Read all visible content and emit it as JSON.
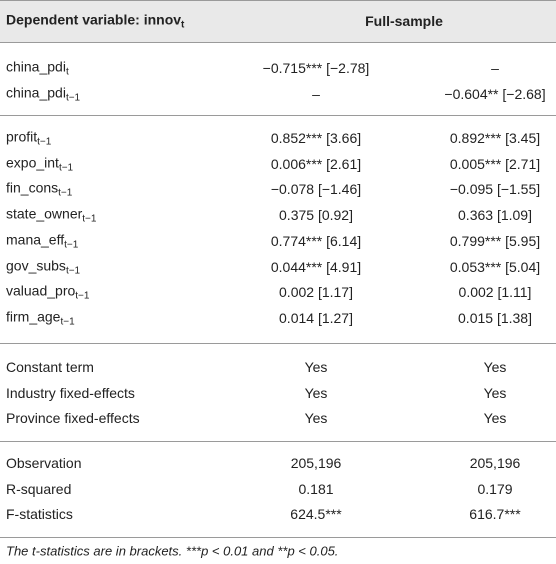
{
  "header": {
    "label": "Dependent variable: innov",
    "label_sub": "t",
    "column": "Full-sample"
  },
  "groups": [
    {
      "rows": [
        {
          "label": "china_pdi",
          "sub": "t",
          "cells": [
            "−0.715*** [−2.78]",
            "–"
          ]
        },
        {
          "label": "china_pdi",
          "sub": "t−1",
          "cells": [
            "–",
            "−0.604** [−2.68]"
          ]
        }
      ]
    },
    {
      "rows": [
        {
          "label": "profit",
          "sub": "t−1",
          "cells": [
            "0.852*** [3.66]",
            "0.892*** [3.45]"
          ]
        },
        {
          "label": "expo_int",
          "sub": "t−1",
          "cells": [
            "0.006*** [2.61]",
            "0.005*** [2.71]"
          ]
        },
        {
          "label": "fin_cons",
          "sub": "t−1",
          "cells": [
            "−0.078 [−1.46]",
            "−0.095 [−1.55]"
          ]
        },
        {
          "label": "state_owner",
          "sub": "t−1",
          "cells": [
            "0.375 [0.92]",
            "0.363 [1.09]"
          ]
        },
        {
          "label": "mana_eff",
          "sub": "t−1",
          "cells": [
            "0.774*** [6.14]",
            "0.799*** [5.95]"
          ]
        },
        {
          "label": "gov_subs",
          "sub": "t−1",
          "cells": [
            "0.044*** [4.91]",
            "0.053*** [5.04]"
          ]
        },
        {
          "label": "valuad_pro",
          "sub": "t−1",
          "cells": [
            "0.002 [1.17]",
            "0.002 [1.11]"
          ]
        },
        {
          "label": "firm_age",
          "sub": "t−1",
          "cells": [
            "0.014 [1.27]",
            "0.015 [1.38]"
          ]
        }
      ]
    },
    {
      "rows": [
        {
          "label": "Constant term",
          "cells": [
            "Yes",
            "Yes"
          ]
        },
        {
          "label": "Industry fixed-effects",
          "cells": [
            "Yes",
            "Yes"
          ]
        },
        {
          "label": "Province fixed-effects",
          "cells": [
            "Yes",
            "Yes"
          ]
        }
      ]
    },
    {
      "rows": [
        {
          "label": "Observation",
          "cells": [
            "205,196",
            "205,196"
          ]
        },
        {
          "label": "R-squared",
          "cells": [
            "0.181",
            "0.179"
          ]
        },
        {
          "label": "F-statistics",
          "cells": [
            "624.5***",
            "616.7***"
          ]
        }
      ]
    }
  ],
  "footnote": "The t-statistics are in brackets. ***p < 0.01 and **p < 0.05."
}
